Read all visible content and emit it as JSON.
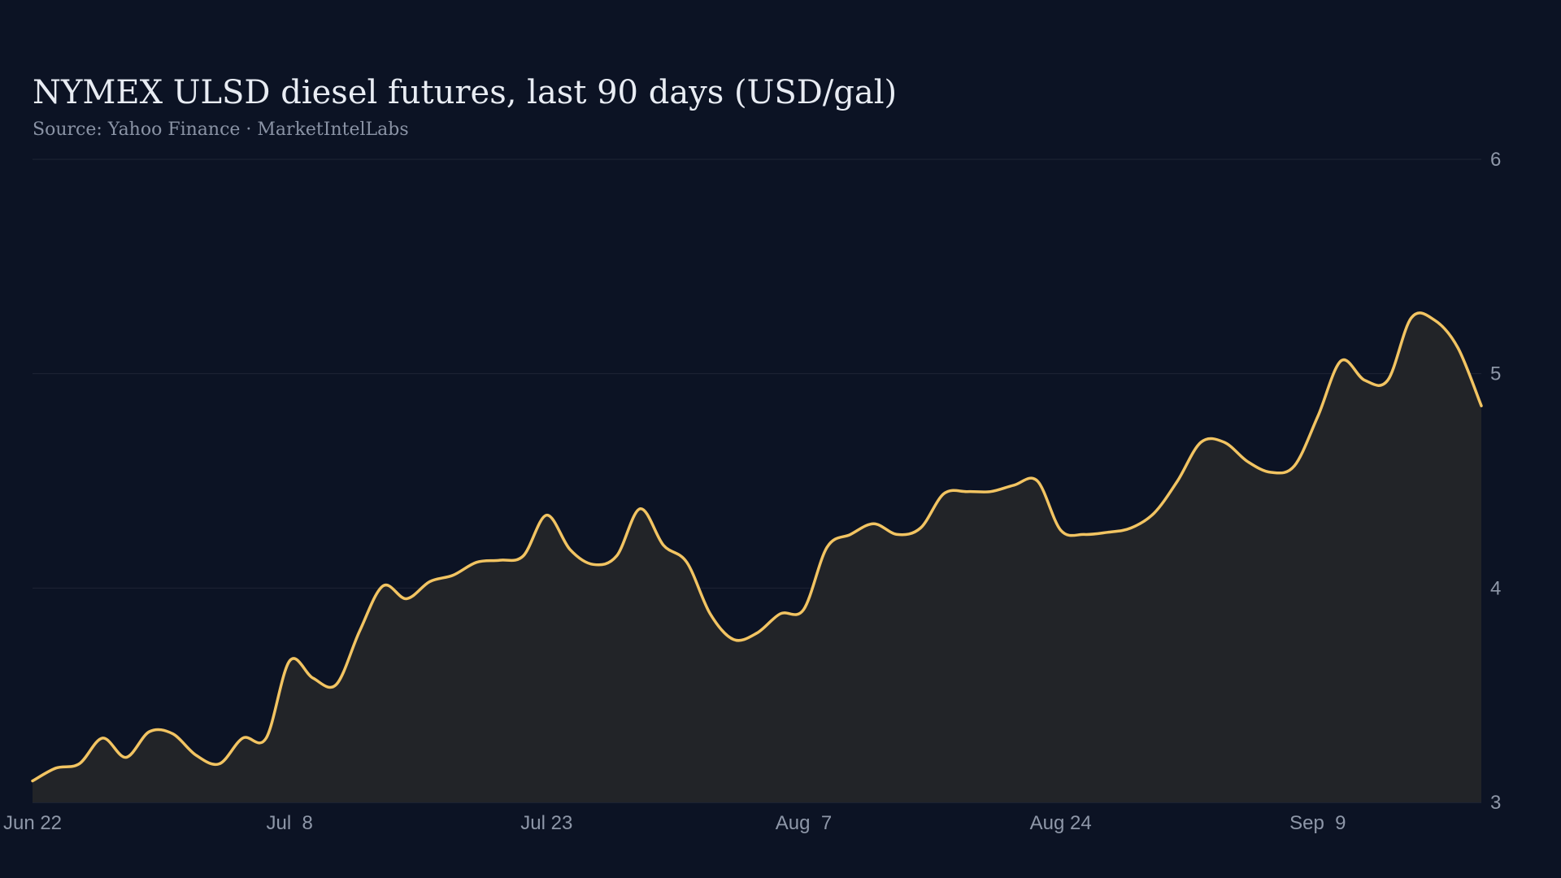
{
  "chart_data": {
    "type": "area",
    "title": "NYMEX ULSD diesel futures, last 90 days (USD/gal)",
    "subtitle": "Source: Yahoo Finance · MarketIntelLabs",
    "y_ticks": [
      3,
      4,
      5,
      6
    ],
    "ylim": [
      3,
      6
    ],
    "x_ticks": [
      "Jun 22",
      "Jul  8",
      "Jul 23",
      "Aug  7",
      "Aug 24",
      "Sep  9"
    ],
    "x_tick_indices": [
      0,
      11,
      22,
      33,
      44,
      55
    ],
    "grid": true,
    "line_color": "#f2c462",
    "fill_color": "#222428",
    "series": [
      {
        "values": [
          3.1,
          3.16,
          3.18,
          3.3,
          3.21,
          3.33,
          3.32,
          3.22,
          3.18,
          3.3,
          3.3,
          3.66,
          3.58,
          3.55,
          3.8,
          4.01,
          3.95,
          4.03,
          4.06,
          4.12,
          4.13,
          4.15,
          4.34,
          4.18,
          4.11,
          4.15,
          4.37,
          4.2,
          4.12,
          3.88,
          3.76,
          3.79,
          3.88,
          3.9,
          4.19,
          4.25,
          4.3,
          4.25,
          4.28,
          4.44,
          4.45,
          4.45,
          4.48,
          4.5,
          4.27,
          4.25,
          4.26,
          4.28,
          4.35,
          4.5,
          4.68,
          4.68,
          4.59,
          4.54,
          4.57,
          4.8,
          5.06,
          4.97,
          4.97,
          5.26,
          5.25,
          5.12,
          4.85
        ]
      }
    ]
  }
}
